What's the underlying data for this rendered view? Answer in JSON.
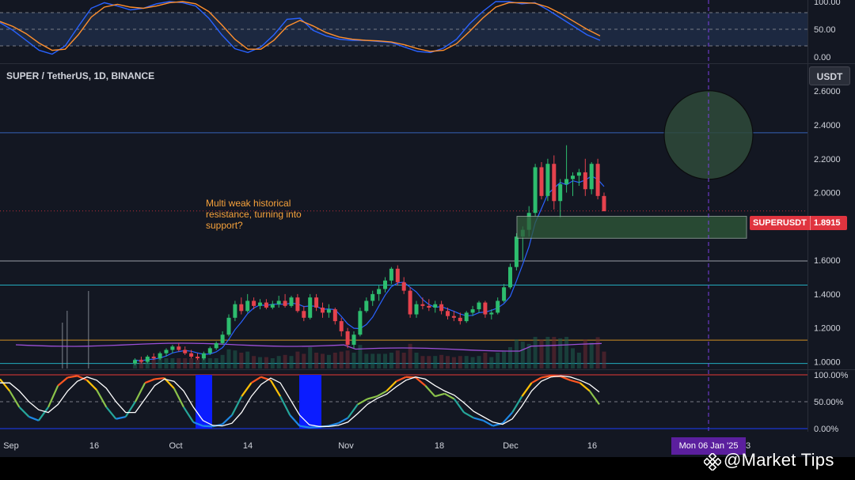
{
  "header": {
    "symbol_label": "SUPER / TetherUS, 1D, BINANCE",
    "currency": "USDT"
  },
  "annotation": {
    "lines": [
      "Multi weak historical",
      "resistance, turning into",
      "support?"
    ]
  },
  "last_price": {
    "ticker": "SUPERUSDT",
    "value": "1.8915"
  },
  "crosshair_date": "Mon 06 Jan '25",
  "watermark": "@Market Tips",
  "colors": {
    "background": "#131722",
    "up": "#26a69a",
    "down": "#ef5350",
    "candle_up": "#2dbd6e",
    "candle_down": "#e5424d",
    "accent_purple": "#7b3fe4",
    "resistance_blue": "#3b6fd1",
    "support_box": "#2f5a39"
  },
  "chart_data": [
    {
      "type": "line",
      "name": "top-oscillator",
      "y_ticks": [
        "100.00",
        "50.00",
        "0.00"
      ],
      "ylim": [
        0,
        100
      ],
      "levels": [
        80,
        50,
        20
      ],
      "series": [
        {
          "values": [
            62,
            48,
            30,
            12,
            5,
            20,
            55,
            88,
            98,
            92,
            85,
            88,
            96,
            100,
            98,
            92,
            70,
            40,
            15,
            8,
            18,
            40,
            68,
            70,
            48,
            38,
            32,
            30,
            30,
            28,
            26,
            18,
            10,
            8,
            16,
            32,
            60,
            82,
            100,
            100,
            96,
            98,
            85,
            70,
            55,
            40,
            30
          ]
        },
        {
          "values": [
            64,
            55,
            42,
            25,
            12,
            14,
            40,
            72,
            90,
            95,
            90,
            88,
            92,
            98,
            100,
            96,
            82,
            58,
            32,
            14,
            14,
            30,
            55,
            66,
            56,
            44,
            36,
            32,
            30,
            29,
            27,
            22,
            15,
            10,
            12,
            24,
            46,
            70,
            90,
            98,
            98,
            97,
            90,
            78,
            64,
            50,
            38
          ]
        }
      ]
    },
    {
      "type": "candlestick",
      "name": "SUPER / TetherUS, 1D, BINANCE",
      "y_ticks": [
        "2.6000",
        "2.4000",
        "2.2000",
        "2.0000",
        "1.8000",
        "1.6000",
        "1.4000",
        "1.2000",
        "1.0000"
      ],
      "ylim": [
        0.96,
        2.76
      ],
      "x_ticks": [
        "Sep",
        "16",
        "Oct",
        "14",
        "Nov",
        "18",
        "Dec",
        "16",
        "3"
      ],
      "candles": [
        [
          0.99,
          1.02,
          0.98,
          1.01
        ],
        [
          1.01,
          1.03,
          0.99,
          1.0
        ],
        [
          1.0,
          1.04,
          0.99,
          1.03
        ],
        [
          1.03,
          1.05,
          1.01,
          1.02
        ],
        [
          1.02,
          1.06,
          1.01,
          1.05
        ],
        [
          1.05,
          1.08,
          1.03,
          1.07
        ],
        [
          1.07,
          1.1,
          1.05,
          1.09
        ],
        [
          1.09,
          1.11,
          1.06,
          1.07
        ],
        [
          1.07,
          1.09,
          1.04,
          1.05
        ],
        [
          1.05,
          1.07,
          1.02,
          1.03
        ],
        [
          1.03,
          1.05,
          1.01,
          1.02
        ],
        [
          1.02,
          1.06,
          1.01,
          1.05
        ],
        [
          1.05,
          1.09,
          1.04,
          1.08
        ],
        [
          1.08,
          1.12,
          1.07,
          1.11
        ],
        [
          1.11,
          1.18,
          1.1,
          1.16
        ],
        [
          1.16,
          1.28,
          1.15,
          1.26
        ],
        [
          1.26,
          1.36,
          1.24,
          1.34
        ],
        [
          1.34,
          1.38,
          1.28,
          1.3
        ],
        [
          1.3,
          1.4,
          1.29,
          1.36
        ],
        [
          1.36,
          1.38,
          1.31,
          1.33
        ],
        [
          1.33,
          1.37,
          1.31,
          1.35
        ],
        [
          1.35,
          1.37,
          1.31,
          1.32
        ],
        [
          1.32,
          1.36,
          1.31,
          1.34
        ],
        [
          1.34,
          1.39,
          1.32,
          1.36
        ],
        [
          1.36,
          1.4,
          1.32,
          1.33
        ],
        [
          1.33,
          1.39,
          1.32,
          1.38
        ],
        [
          1.38,
          1.4,
          1.29,
          1.3
        ],
        [
          1.3,
          1.33,
          1.24,
          1.26
        ],
        [
          1.26,
          1.4,
          1.25,
          1.38
        ],
        [
          1.38,
          1.4,
          1.3,
          1.32
        ],
        [
          1.32,
          1.35,
          1.26,
          1.29
        ],
        [
          1.29,
          1.34,
          1.26,
          1.31
        ],
        [
          1.31,
          1.32,
          1.22,
          1.24
        ],
        [
          1.24,
          1.26,
          1.15,
          1.18
        ],
        [
          1.18,
          1.2,
          1.08,
          1.1
        ],
        [
          1.1,
          1.18,
          1.08,
          1.16
        ],
        [
          1.16,
          1.32,
          1.15,
          1.3
        ],
        [
          1.3,
          1.38,
          1.29,
          1.36
        ],
        [
          1.36,
          1.42,
          1.33,
          1.4
        ],
        [
          1.4,
          1.45,
          1.36,
          1.43
        ],
        [
          1.43,
          1.5,
          1.41,
          1.48
        ],
        [
          1.48,
          1.56,
          1.46,
          1.55
        ],
        [
          1.55,
          1.57,
          1.45,
          1.47
        ],
        [
          1.47,
          1.5,
          1.4,
          1.42
        ],
        [
          1.42,
          1.44,
          1.26,
          1.28
        ],
        [
          1.28,
          1.36,
          1.26,
          1.34
        ],
        [
          1.34,
          1.38,
          1.31,
          1.33
        ],
        [
          1.33,
          1.37,
          1.3,
          1.32
        ],
        [
          1.32,
          1.36,
          1.29,
          1.34
        ],
        [
          1.34,
          1.36,
          1.28,
          1.3
        ],
        [
          1.3,
          1.32,
          1.25,
          1.27
        ],
        [
          1.27,
          1.3,
          1.24,
          1.26
        ],
        [
          1.26,
          1.29,
          1.22,
          1.24
        ],
        [
          1.24,
          1.3,
          1.23,
          1.29
        ],
        [
          1.29,
          1.33,
          1.27,
          1.31
        ],
        [
          1.31,
          1.36,
          1.29,
          1.35
        ],
        [
          1.35,
          1.36,
          1.26,
          1.28
        ],
        [
          1.28,
          1.31,
          1.25,
          1.29
        ],
        [
          1.29,
          1.38,
          1.28,
          1.36
        ],
        [
          1.36,
          1.46,
          1.35,
          1.44
        ],
        [
          1.44,
          1.58,
          1.43,
          1.56
        ],
        [
          1.56,
          1.76,
          1.54,
          1.74
        ],
        [
          1.74,
          1.8,
          1.6,
          1.78
        ],
        [
          1.78,
          1.92,
          1.74,
          1.88
        ],
        [
          1.88,
          2.17,
          1.86,
          2.15
        ],
        [
          2.15,
          2.18,
          1.96,
          1.98
        ],
        [
          1.98,
          2.2,
          1.95,
          2.17
        ],
        [
          2.17,
          2.22,
          1.9,
          1.95
        ],
        [
          1.95,
          2.08,
          1.85,
          2.05
        ],
        [
          2.05,
          2.28,
          2.0,
          2.08
        ],
        [
          2.08,
          2.12,
          1.98,
          2.1
        ],
        [
          2.1,
          2.14,
          2.04,
          2.12
        ],
        [
          2.12,
          2.2,
          1.98,
          2.02
        ],
        [
          2.02,
          2.18,
          1.99,
          2.17
        ],
        [
          2.17,
          2.2,
          1.96,
          1.98
        ],
        [
          1.98,
          2.0,
          1.89,
          1.89
        ]
      ],
      "levels": [
        {
          "value": 2.354,
          "color": "#3b6fd1"
        },
        {
          "value": 1.596,
          "color": "#b2b5be"
        },
        {
          "value": 1.453,
          "color": "#26c6da"
        },
        {
          "value": 1.128,
          "color": "#f5a623"
        },
        {
          "value": 0.99,
          "color": "#26c6da"
        },
        {
          "value": 1.8915,
          "color": "#e0343f"
        }
      ],
      "support_zone": [
        1.73,
        1.86
      ],
      "target_circle_center": 2.35
    },
    {
      "type": "line",
      "name": "bottom-stochastic",
      "y_ticks": [
        "100.00%",
        "50.00%",
        "0.00%"
      ],
      "ylim": [
        0,
        100
      ],
      "series": [
        {
          "values": [
            92,
            70,
            40,
            22,
            15,
            40,
            80,
            95,
            98,
            90,
            72,
            40,
            18,
            22,
            50,
            85,
            92,
            94,
            75,
            40,
            12,
            5,
            4,
            8,
            25,
            60,
            85,
            96,
            90,
            60,
            25,
            5,
            2,
            3,
            5,
            10,
            20,
            45,
            55,
            60,
            70,
            88,
            96,
            95,
            80,
            60,
            65,
            55,
            30,
            20,
            15,
            5,
            10,
            30,
            60,
            85,
            95,
            98,
            97,
            90,
            85,
            70,
            45
          ]
        },
        {
          "values": [
            85,
            85,
            70,
            50,
            35,
            30,
            45,
            70,
            88,
            96,
            90,
            75,
            50,
            30,
            30,
            55,
            80,
            92,
            88,
            70,
            40,
            15,
            6,
            5,
            10,
            30,
            60,
            82,
            94,
            85,
            55,
            25,
            7,
            4,
            4,
            6,
            12,
            28,
            45,
            56,
            64,
            78,
            90,
            96,
            92,
            80,
            70,
            62,
            48,
            32,
            22,
            12,
            8,
            18,
            42,
            70,
            88,
            96,
            98,
            96,
            90,
            82,
            68
          ]
        }
      ],
      "levels": [
        100,
        50,
        0
      ],
      "highlight_spans": [
        "early Oct",
        "late Oct"
      ]
    }
  ]
}
